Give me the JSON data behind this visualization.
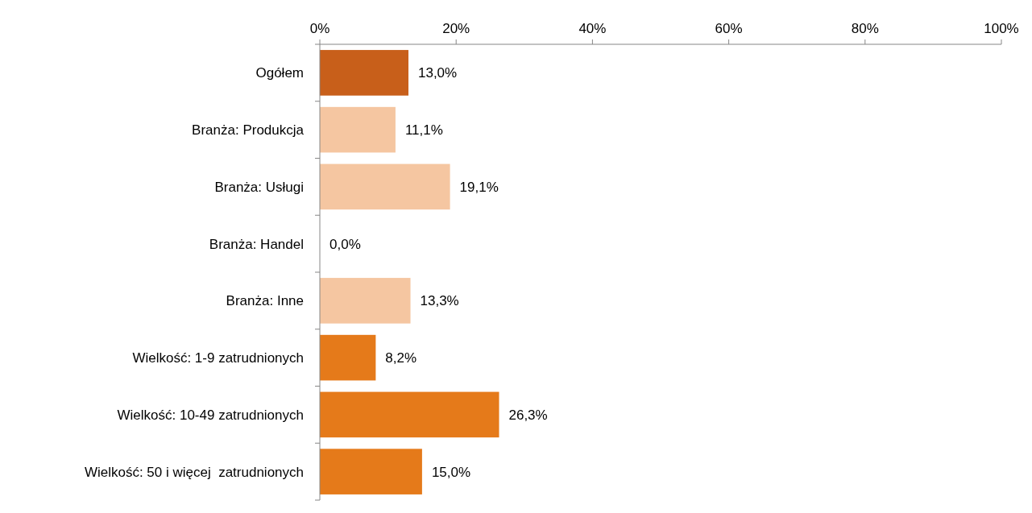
{
  "chart_data": {
    "type": "bar",
    "orientation": "horizontal",
    "categories": [
      "Ogółem",
      "Branża: Produkcja",
      "Branża: Usługi",
      "Branża: Handel",
      "Branża: Inne",
      "Wielkość: 1-9 zatrudnionych",
      "Wielkość: 10-49 zatrudnionych",
      "Wielkość: 50 i więcej  zatrudnionych"
    ],
    "values": [
      13.0,
      11.1,
      19.1,
      0.0,
      13.3,
      8.2,
      26.3,
      15.0
    ],
    "value_labels": [
      "13,0%",
      "11,1%",
      "19,1%",
      "0,0%",
      "13,3%",
      "8,2%",
      "26,3%",
      "15,0%"
    ],
    "colors": [
      "#c85f1a",
      "#f5c6a1",
      "#f5c6a1",
      "#f5c6a1",
      "#f5c6a1",
      "#e57a1a",
      "#e57a1a",
      "#e57a1a"
    ],
    "xlim": [
      0,
      100
    ],
    "xticks": [
      {
        "value": 0,
        "label": "0%"
      },
      {
        "value": 20,
        "label": "20%"
      },
      {
        "value": 40,
        "label": "40%"
      },
      {
        "value": 60,
        "label": "60%"
      },
      {
        "value": 80,
        "label": "80%"
      },
      {
        "value": 100,
        "label": "100%"
      }
    ],
    "grid": false
  }
}
